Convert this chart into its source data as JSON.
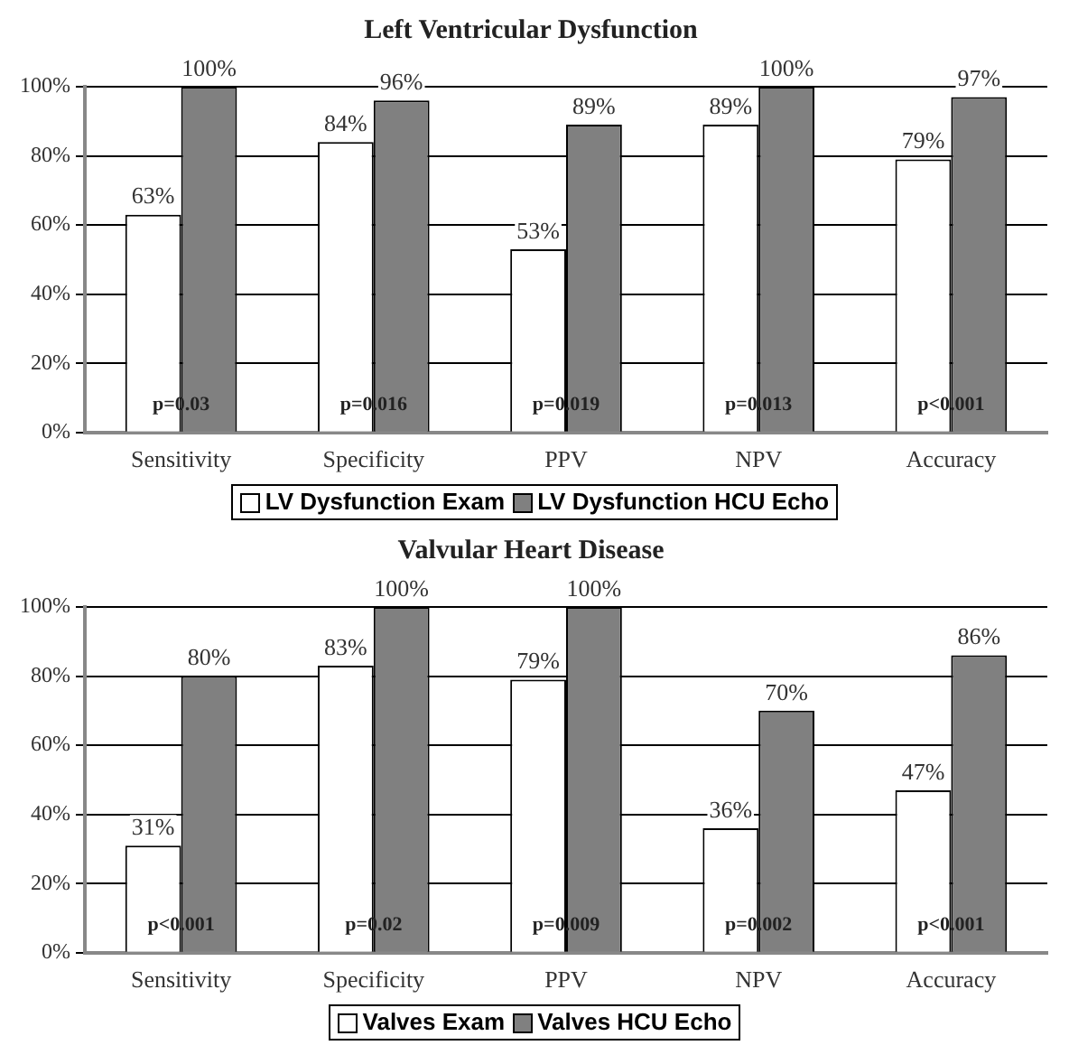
{
  "chart_data": [
    {
      "type": "bar",
      "title": "Left Ventricular Dysfunction",
      "categories": [
        "Sensitivity",
        "Specificity",
        "PPV",
        "NPV",
        "Accuracy"
      ],
      "series": [
        {
          "name": "LV Dysfunction Exam",
          "color": "#ffffff",
          "values": [
            63,
            84,
            53,
            89,
            79
          ],
          "value_labels": [
            "63%",
            "84%",
            "53%",
            "89%",
            "79%"
          ]
        },
        {
          "name": "LV Dysfunction HCU Echo",
          "color": "#808080",
          "values": [
            100,
            96,
            89,
            100,
            97
          ],
          "value_labels": [
            "100%",
            "96%",
            "89%",
            "100%",
            "97%"
          ]
        }
      ],
      "ylim": [
        0,
        100
      ],
      "yticks": [
        {
          "value": 0,
          "label": "0%"
        },
        {
          "value": 20,
          "label": "20%"
        },
        {
          "value": 40,
          "label": "40%"
        },
        {
          "value": 60,
          "label": "60%"
        },
        {
          "value": 80,
          "label": "80%"
        },
        {
          "value": 100,
          "label": "100%"
        }
      ],
      "grid": "y",
      "legend": "bottom",
      "annotations": [
        {
          "text": "p=0.03",
          "x": "Sensitivity",
          "y": 8
        },
        {
          "text": "p=0.016",
          "x": "Specificity",
          "y": 8
        },
        {
          "text": "p=0.019",
          "x": "PPV",
          "y": 8
        },
        {
          "text": "p=0.013",
          "x": "NPV",
          "y": 8
        },
        {
          "text": "p<0.001",
          "x": "Accuracy",
          "y": 8
        }
      ]
    },
    {
      "type": "bar",
      "title": "Valvular Heart Disease",
      "categories": [
        "Sensitivity",
        "Specificity",
        "PPV",
        "NPV",
        "Accuracy"
      ],
      "series": [
        {
          "name": "Valves Exam",
          "color": "#ffffff",
          "values": [
            31,
            83,
            79,
            36,
            47
          ],
          "value_labels": [
            "31%",
            "83%",
            "79%",
            "36%",
            "47%"
          ]
        },
        {
          "name": "Valves HCU Echo",
          "color": "#808080",
          "values": [
            80,
            100,
            100,
            70,
            86
          ],
          "value_labels": [
            "80%",
            "100%",
            "100%",
            "70%",
            "86%"
          ]
        }
      ],
      "ylim": [
        0,
        100
      ],
      "yticks": [
        {
          "value": 0,
          "label": "0%"
        },
        {
          "value": 20,
          "label": "20%"
        },
        {
          "value": 40,
          "label": "40%"
        },
        {
          "value": 60,
          "label": "60%"
        },
        {
          "value": 80,
          "label": "80%"
        },
        {
          "value": 100,
          "label": "100%"
        }
      ],
      "grid": "y",
      "legend": "bottom",
      "annotations": [
        {
          "text": "p<0.001",
          "x": "Sensitivity",
          "y": 8
        },
        {
          "text": "p=0.02",
          "x": "Specificity",
          "y": 8
        },
        {
          "text": "p=0.009",
          "x": "PPV",
          "y": 8
        },
        {
          "text": "p=0.002",
          "x": "NPV",
          "y": 8
        },
        {
          "text": "p<0.001",
          "x": "Accuracy",
          "y": 8
        }
      ]
    }
  ]
}
